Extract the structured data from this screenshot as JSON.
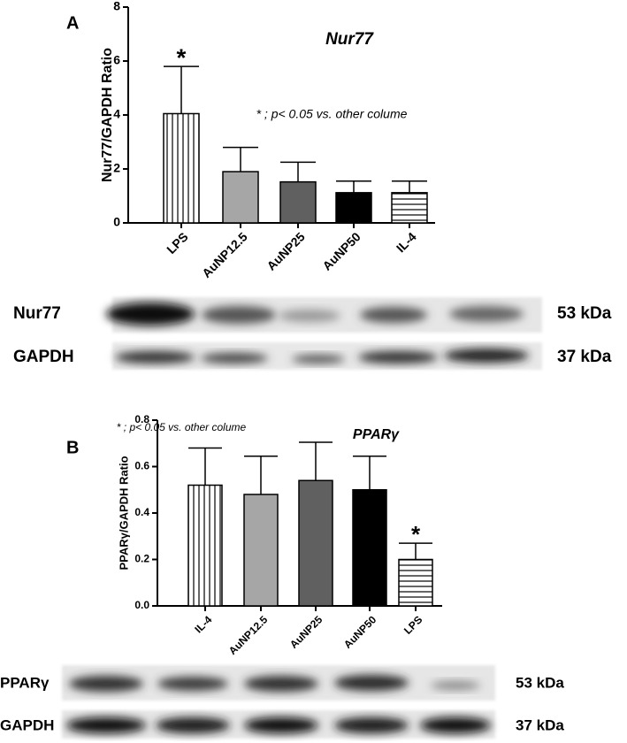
{
  "chart_data": [
    {
      "type": "bar",
      "panel": "A",
      "title": "Nur77",
      "y_label": "Nur77/GAPDH Ratio",
      "annotation": "* ; p< 0.05 vs. other colume",
      "categories": [
        "LPS",
        "AuNP12.5",
        "AuNP25",
        "AuNP50",
        "IL-4"
      ],
      "values": [
        4.05,
        1.9,
        1.52,
        1.12,
        1.12
      ],
      "errors": [
        1.75,
        0.9,
        0.73,
        0.43,
        0.43
      ],
      "markers": [
        "*",
        null,
        null,
        null,
        null
      ],
      "colors": [
        "#ffffff",
        "#a6a6a6",
        "#606060",
        "#000000",
        "#ffffff"
      ],
      "hatch": [
        "vertical",
        null,
        null,
        null,
        "horizontal"
      ],
      "ylim": [
        0,
        8
      ],
      "yticks": [
        0,
        2,
        4,
        6,
        8
      ],
      "blots": [
        {
          "label": "Nur77",
          "size": "53 kDa"
        },
        {
          "label": "GAPDH",
          "size": "37 kDa"
        }
      ]
    },
    {
      "type": "bar",
      "panel": "B",
      "title": "PPARγ",
      "y_label": "PPARγ/GAPDH Ratio",
      "annotation": "* ; p< 0.05 vs. other colume",
      "categories": [
        "IL-4",
        "AuNP12.5",
        "AuNP25",
        "AuNP50",
        "LPS"
      ],
      "values": [
        0.52,
        0.48,
        0.54,
        0.5,
        0.2
      ],
      "errors": [
        0.16,
        0.165,
        0.165,
        0.145,
        0.07
      ],
      "markers": [
        null,
        null,
        null,
        null,
        "*"
      ],
      "colors": [
        "#ffffff",
        "#a6a6a6",
        "#606060",
        "#000000",
        "#ffffff"
      ],
      "hatch": [
        "vertical",
        null,
        null,
        null,
        "horizontal"
      ],
      "ylim": [
        0,
        0.8
      ],
      "yticks": [
        {
          "value": 0,
          "label": "0.0"
        },
        0.2,
        0.4,
        0.6,
        0.8
      ],
      "blots": [
        {
          "label": "PPARγ",
          "size": "53 kDa"
        },
        {
          "label": "GAPDH",
          "size": "37 kDa"
        }
      ]
    }
  ]
}
